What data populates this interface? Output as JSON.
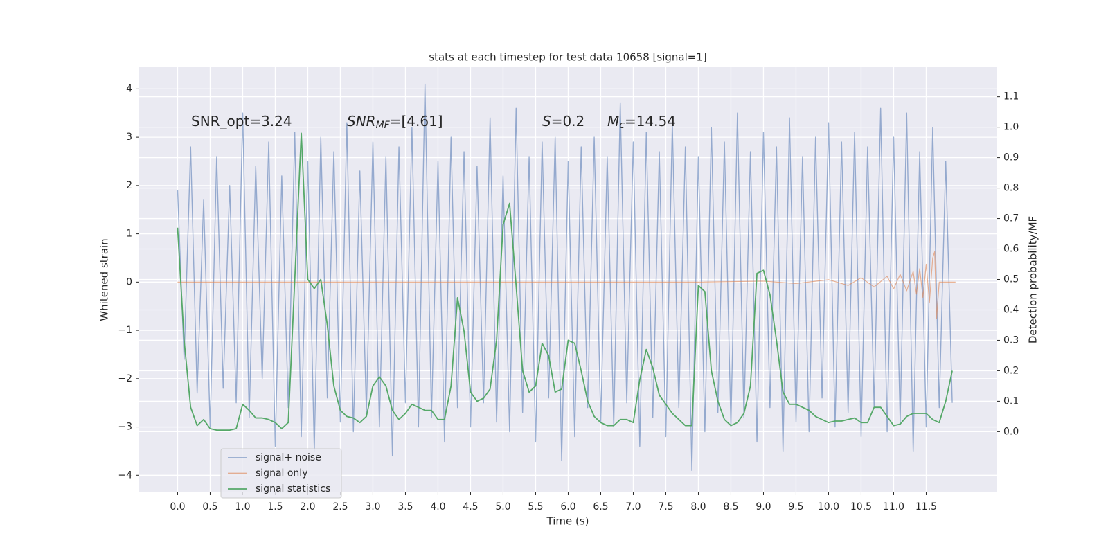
{
  "chart_data": {
    "type": "line",
    "title": "stats at each timestep for test data 10658 [signal=1]",
    "x_label": "Time (s)",
    "y_label": "Whitened strain",
    "y2_label": "Detection probability/MF",
    "xlim": [
      -0.59,
      12.58
    ],
    "ylim": [
      -4.34,
      4.45
    ],
    "y2lim": [
      -0.197,
      1.197
    ],
    "xticks": [
      {
        "value": 0,
        "label": "0.0"
      },
      0.5,
      {
        "value": 1,
        "label": "1.0"
      },
      1.5,
      {
        "value": 2,
        "label": "2.0"
      },
      2.5,
      {
        "value": 3,
        "label": "3.0"
      },
      3.5,
      {
        "value": 4,
        "label": "4.0"
      },
      4.5,
      {
        "value": 5,
        "label": "5.0"
      },
      5.5,
      {
        "value": 6,
        "label": "6.0"
      },
      6.5,
      {
        "value": 7,
        "label": "7.0"
      },
      7.5,
      {
        "value": 8,
        "label": "8.0"
      },
      8.5,
      {
        "value": 9,
        "label": "9.0"
      },
      9.5,
      {
        "value": 10,
        "label": "10.0"
      },
      10.5,
      {
        "value": 11,
        "label": "11.0"
      },
      11.5
    ],
    "yticks": [
      {
        "value": -4,
        "label": "−4"
      },
      {
        "value": -3,
        "label": "−3"
      },
      {
        "value": -2,
        "label": "−2"
      },
      {
        "value": -1,
        "label": "−1"
      },
      0,
      1,
      2,
      3,
      4
    ],
    "y2ticks": [
      {
        "value": 0,
        "label": "0.0"
      },
      0.1,
      0.2,
      0.3,
      0.4,
      0.5,
      0.6,
      0.7,
      0.8,
      0.9,
      {
        "value": 1,
        "label": "1.0"
      },
      1.1
    ],
    "grid": true,
    "legend": "lower left",
    "annotations": [
      {
        "text": "SNR_opt=3.24"
      },
      {
        "text": "SNR",
        "sub": "M",
        "sub_italic": "F",
        "after": "=[4.61]"
      },
      {
        "text": "S",
        "after": "=0.2"
      },
      {
        "text": "M",
        "sub": "c",
        "after": "=14.54"
      }
    ],
    "series": [
      {
        "name": "signal+ noise",
        "color": "#4c72b0",
        "x": [
          0,
          0.1,
          0.2,
          0.3,
          0.4,
          0.5,
          0.6,
          0.7,
          0.8,
          0.9,
          1,
          1.1,
          1.2,
          1.3,
          1.4,
          1.5,
          1.6,
          1.7,
          1.8,
          1.9,
          2,
          2.1,
          2.2,
          2.3,
          2.4,
          2.5,
          2.6,
          2.7,
          2.8,
          2.9,
          3,
          3.1,
          3.2,
          3.3,
          3.4,
          3.5,
          3.6,
          3.7,
          3.8,
          3.9,
          4,
          4.1,
          4.2,
          4.3,
          4.4,
          4.5,
          4.6,
          4.7,
          4.8,
          4.9,
          5,
          5.1,
          5.2,
          5.3,
          5.4,
          5.5,
          5.6,
          5.7,
          5.8,
          5.9,
          6,
          6.1,
          6.2,
          6.3,
          6.4,
          6.5,
          6.6,
          6.7,
          6.8,
          6.9,
          7,
          7.1,
          7.2,
          7.3,
          7.4,
          7.5,
          7.6,
          7.7,
          7.8,
          7.9,
          8,
          8.1,
          8.2,
          8.3,
          8.4,
          8.5,
          8.6,
          8.7,
          8.8,
          8.9,
          9,
          9.1,
          9.2,
          9.3,
          9.4,
          9.5,
          9.6,
          9.7,
          9.8,
          9.9,
          10,
          10.1,
          10.2,
          10.3,
          10.4,
          10.5,
          10.6,
          10.7,
          10.8,
          10.9,
          11,
          11.1,
          11.2,
          11.3,
          11.4,
          11.5,
          11.6,
          11.7,
          11.8,
          11.9
        ],
        "values": [
          1.9,
          -1.6,
          2.8,
          -2.3,
          1.7,
          -3.0,
          2.6,
          -2.2,
          2.0,
          -2.5,
          3.5,
          -2.8,
          2.4,
          -2.0,
          2.9,
          -3.4,
          2.2,
          -2.6,
          3.1,
          -3.2,
          2.5,
          -3.5,
          3.0,
          -2.4,
          2.7,
          -2.9,
          3.3,
          -3.1,
          2.3,
          -2.7,
          2.9,
          -3.0,
          2.6,
          -3.6,
          2.8,
          -2.5,
          3.2,
          -3.0,
          4.1,
          -2.8,
          2.5,
          -3.3,
          3.0,
          -2.6,
          2.7,
          -3.0,
          2.4,
          -2.5,
          3.4,
          -2.9,
          2.2,
          -3.1,
          3.6,
          -2.7,
          2.6,
          -3.3,
          2.9,
          -2.4,
          3.0,
          -3.7,
          2.5,
          -3.2,
          2.8,
          -2.6,
          3.0,
          -2.9,
          2.6,
          -3.0,
          3.7,
          -2.5,
          2.9,
          -3.4,
          3.1,
          -2.8,
          2.7,
          -3.2,
          3.3,
          -2.6,
          2.8,
          -3.9,
          2.6,
          -3.1,
          3.2,
          -2.7,
          2.9,
          -3.0,
          3.5,
          -2.8,
          2.7,
          -3.3,
          3.1,
          -2.6,
          2.8,
          -3.5,
          3.4,
          -2.9,
          2.6,
          -3.1,
          3.0,
          -2.4,
          3.3,
          -3.0,
          2.9,
          -2.7,
          3.1,
          -3.2,
          2.8,
          -2.6,
          3.6,
          -3.1,
          3.0,
          -2.9,
          3.5,
          -3.5,
          2.7,
          -3.0,
          3.2,
          -2.6,
          2.5,
          -2.5
        ]
      },
      {
        "name": "signal only",
        "color": "#dd8452",
        "x": [
          0,
          8,
          9,
          9.5,
          10,
          10.3,
          10.5,
          10.7,
          10.9,
          11,
          11.1,
          11.2,
          11.3,
          11.35,
          11.4,
          11.45,
          11.5,
          11.55,
          11.6,
          11.63,
          11.66,
          11.7,
          11.95
        ],
        "values": [
          0,
          0,
          0.02,
          -0.03,
          0.05,
          -0.07,
          0.09,
          -0.1,
          0.12,
          -0.14,
          0.16,
          -0.18,
          0.22,
          -0.25,
          0.28,
          -0.32,
          0.37,
          -0.42,
          0.5,
          0.63,
          -0.75,
          0,
          0
        ]
      },
      {
        "name": "signal statistics",
        "color": "#55a868",
        "axis": "y2",
        "x": [
          0,
          0.1,
          0.2,
          0.3,
          0.4,
          0.5,
          0.6,
          0.7,
          0.8,
          0.9,
          1,
          1.1,
          1.2,
          1.3,
          1.4,
          1.5,
          1.6,
          1.7,
          1.8,
          1.9,
          2,
          2.1,
          2.2,
          2.3,
          2.4,
          2.5,
          2.6,
          2.7,
          2.8,
          2.9,
          3,
          3.1,
          3.2,
          3.3,
          3.4,
          3.5,
          3.6,
          3.7,
          3.8,
          3.9,
          4,
          4.1,
          4.2,
          4.3,
          4.4,
          4.5,
          4.6,
          4.7,
          4.8,
          4.9,
          5,
          5.1,
          5.2,
          5.3,
          5.4,
          5.5,
          5.6,
          5.7,
          5.8,
          5.9,
          6,
          6.1,
          6.2,
          6.3,
          6.4,
          6.5,
          6.6,
          6.7,
          6.8,
          6.9,
          7,
          7.1,
          7.2,
          7.3,
          7.4,
          7.5,
          7.6,
          7.7,
          7.8,
          7.9,
          8,
          8.1,
          8.2,
          8.3,
          8.4,
          8.5,
          8.6,
          8.7,
          8.8,
          8.9,
          9,
          9.1,
          9.2,
          9.3,
          9.4,
          9.5,
          9.6,
          9.7,
          9.8,
          9.9,
          10,
          10.1,
          10.2,
          10.3,
          10.4,
          10.5,
          10.6,
          10.7,
          10.8,
          10.9,
          11,
          11.1,
          11.2,
          11.3,
          11.4,
          11.5,
          11.6,
          11.7,
          11.8,
          11.9
        ],
        "values": [
          0.67,
          0.3,
          0.08,
          0.02,
          0.04,
          0.01,
          0.005,
          0.005,
          0.005,
          0.01,
          0.09,
          0.07,
          0.045,
          0.045,
          0.04,
          0.03,
          0.01,
          0.03,
          0.5,
          0.98,
          0.5,
          0.47,
          0.5,
          0.35,
          0.15,
          0.07,
          0.05,
          0.045,
          0.03,
          0.05,
          0.15,
          0.18,
          0.15,
          0.07,
          0.04,
          0.06,
          0.09,
          0.08,
          0.07,
          0.07,
          0.04,
          0.04,
          0.15,
          0.44,
          0.33,
          0.13,
          0.1,
          0.11,
          0.14,
          0.3,
          0.68,
          0.75,
          0.48,
          0.2,
          0.13,
          0.15,
          0.29,
          0.25,
          0.13,
          0.14,
          0.3,
          0.29,
          0.2,
          0.1,
          0.05,
          0.03,
          0.02,
          0.02,
          0.04,
          0.04,
          0.03,
          0.17,
          0.27,
          0.21,
          0.12,
          0.09,
          0.06,
          0.04,
          0.02,
          0.02,
          0.48,
          0.46,
          0.2,
          0.1,
          0.04,
          0.02,
          0.03,
          0.06,
          0.15,
          0.52,
          0.53,
          0.45,
          0.3,
          0.13,
          0.09,
          0.09,
          0.08,
          0.07,
          0.05,
          0.04,
          0.03,
          0.035,
          0.035,
          0.04,
          0.045,
          0.03,
          0.03,
          0.08,
          0.08,
          0.05,
          0.02,
          0.025,
          0.05,
          0.06,
          0.06,
          0.06,
          0.04,
          0.03,
          0.1,
          0.2
        ]
      }
    ]
  }
}
